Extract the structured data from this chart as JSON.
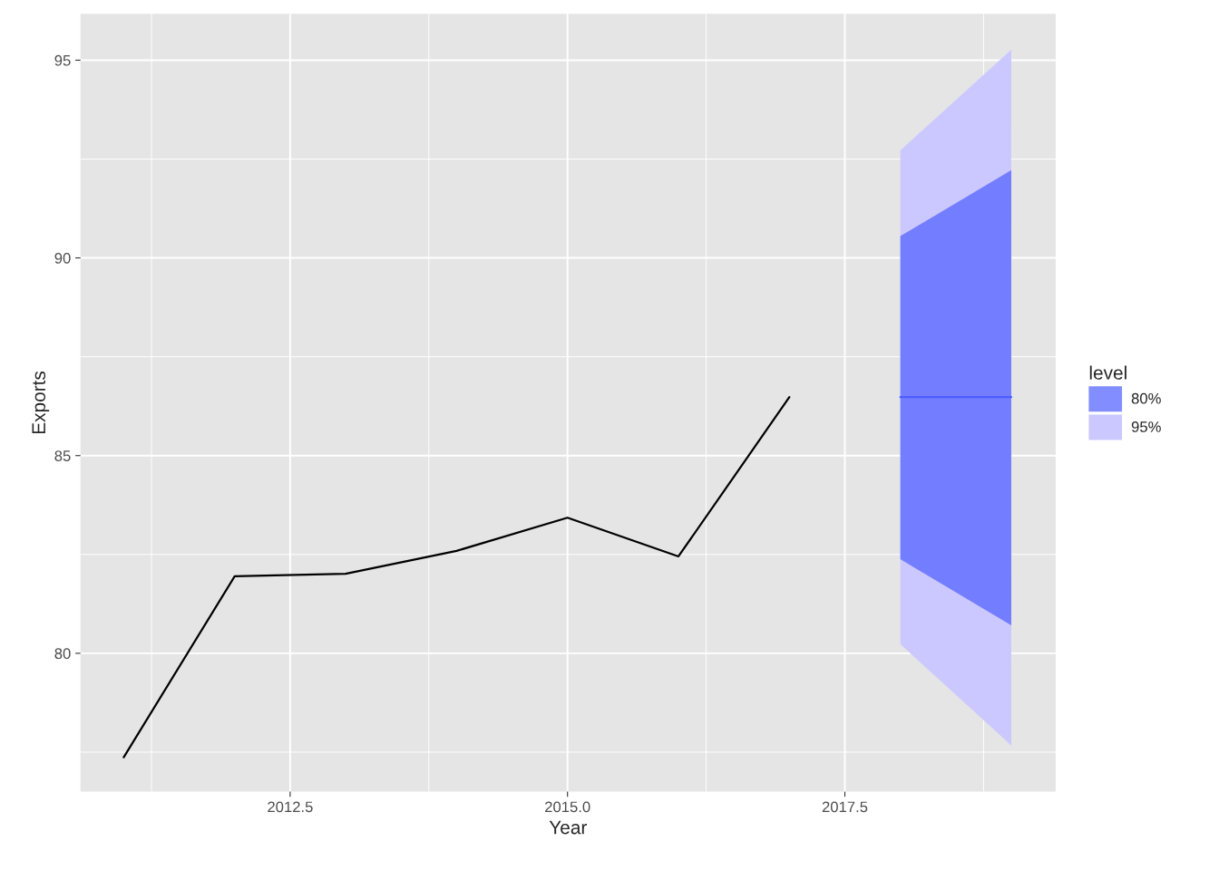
{
  "chart_data": {
    "type": "line",
    "xlabel": "Year",
    "ylabel": "Exports",
    "legend_title": "level",
    "series": [
      {
        "name": "95%",
        "color": "#cbc8ff",
        "x": [
          2018,
          2019
        ],
        "values": [
          null,
          null
        ],
        "lower": [
          80.23,
          77.67
        ],
        "upper": [
          92.72,
          95.27
        ]
      },
      {
        "name": "80%",
        "color": "#4d5dff",
        "x": [
          2018,
          2019
        ],
        "values": [
          86.48,
          86.48
        ],
        "lower": [
          82.38,
          80.71
        ],
        "upper": [
          90.55,
          92.22
        ]
      },
      {
        "color": "#000000",
        "x": [
          2011,
          2012,
          2013,
          2014,
          2015,
          2016,
          2017
        ],
        "values": [
          77.37,
          81.95,
          82.01,
          82.59,
          83.43,
          82.45,
          86.48
        ]
      }
    ],
    "xlim": [
      2010.61,
      2019.4
    ],
    "ylim": [
      76.5,
      96.17
    ],
    "xticks": [
      {
        "value": 2012.5,
        "label": "2012.5"
      },
      {
        "value": 2015,
        "label": "2015.0"
      },
      {
        "value": 2017.5,
        "label": "2017.5"
      }
    ],
    "yticks": [
      80,
      85,
      90,
      95
    ],
    "grid": true,
    "legend": "right"
  }
}
